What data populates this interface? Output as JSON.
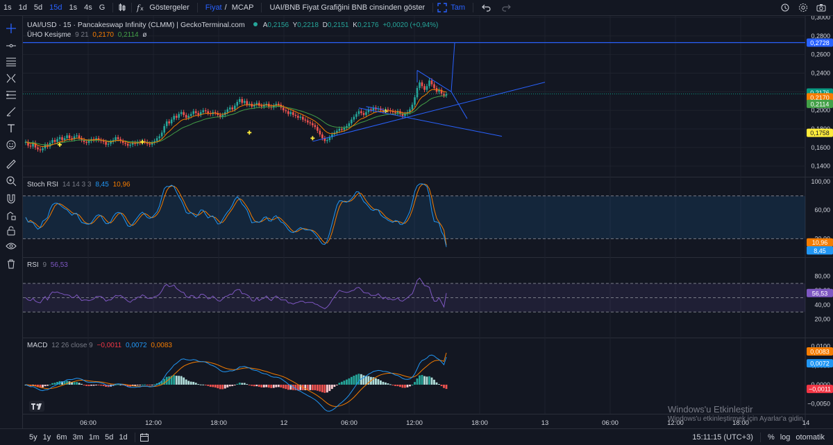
{
  "toolbar": {
    "intervals": [
      "1s",
      "1d",
      "5d",
      "15d",
      "1s",
      "4s",
      "G"
    ],
    "active_interval_index": 3,
    "indicators_label": "Göstergeler",
    "price_label": "Fiyat",
    "mcap_label": "MCAP",
    "pair_toggle_label": "UAI/BNB Fiyat Grafiğini BNB cinsinden göster",
    "fullscreen_label": "Tam"
  },
  "legend": {
    "symbol": "UAI/USD · 15 · Pancakeswap Infinity (CLMM) | GeckoTerminal.com",
    "open_label": "A",
    "open": "0,2156",
    "high_label": "Y",
    "high": "0,2218",
    "low_label": "D",
    "low": "0,2151",
    "close_label": "K",
    "close": "0,2176",
    "change": "+0,0020 (+0,94%)",
    "ma_name": "ÜHO Kesişme",
    "ma_params": "9 21",
    "ma_fast": "0,2170",
    "ma_slow": "0,2114",
    "ma_extra": "ø"
  },
  "stoch_legend": {
    "name": "Stoch RSI",
    "params": "14 14 3 3",
    "k": "8,45",
    "d": "10,96"
  },
  "rsi_legend": {
    "name": "RSI",
    "params": "9",
    "value": "56,53"
  },
  "macd_legend": {
    "name": "MACD",
    "params": "12 26 close 9",
    "hist": "−0,0011",
    "macd": "0,0072",
    "signal": "0,0083"
  },
  "price_axis": {
    "ticks": [
      "0,3000",
      "0,2800",
      "0,2600",
      "0,2400",
      "0,2200",
      "0,2000",
      "0,1800",
      "0,1600",
      "0,1400"
    ],
    "badges": [
      {
        "label": "0,2728",
        "value": 0.2728,
        "color": "#2962ff",
        "text_color": "#ffffff"
      },
      {
        "label": "0,2176",
        "value": 0.2176,
        "color": "#089981",
        "text_color": "#ffffff"
      },
      {
        "label": "0,2170",
        "value": 0.217,
        "color": "#f57c00",
        "text_color": "#ffffff"
      },
      {
        "label": "0,2114",
        "value": 0.2114,
        "color": "#43a047",
        "text_color": "#ffffff"
      },
      {
        "label": "0,1758",
        "value": 0.1758,
        "color": "#ffeb3b",
        "text_color": "#131722"
      }
    ]
  },
  "stoch_axis": {
    "ticks": [
      "100,00",
      "60,00",
      "20,00"
    ],
    "badges": [
      {
        "label": "10,96",
        "value": 10.96,
        "color": "#f57c00"
      },
      {
        "label": "8,45",
        "value": 8.45,
        "color": "#2196f3"
      }
    ]
  },
  "rsi_axis": {
    "ticks": [
      "80,00",
      "60,00",
      "40,00",
      "20,00"
    ],
    "badges": [
      {
        "label": "56,53",
        "value": 56.53,
        "color": "#7e57c2"
      }
    ]
  },
  "macd_axis": {
    "ticks": [
      "0,0100",
      "0,0050",
      "0,0000",
      "−0,0050"
    ],
    "badges": [
      {
        "label": "0,0083",
        "value": 0.0083,
        "color": "#f57c00"
      },
      {
        "label": "0,0072",
        "value": 0.0072,
        "color": "#2196f3"
      },
      {
        "label": "−0,0011",
        "value": -0.0011,
        "color": "#f23645"
      }
    ]
  },
  "time_axis": [
    "06:00",
    "12:00",
    "18:00",
    "12",
    "06:00",
    "12:00",
    "18:00",
    "13",
    "06:00",
    "12:00",
    "18:00",
    "14"
  ],
  "bottom": {
    "ranges": [
      "5y",
      "1y",
      "6m",
      "3m",
      "1m",
      "5d",
      "1d"
    ],
    "clock": "15:11:15 (UTC+3)",
    "percent_label": "%",
    "log_label": "log",
    "auto_label": "otomatik"
  },
  "watermark": {
    "title": "Windows'u Etkinleştir",
    "subtitle": "Windows'u etkinleştirmek için Ayarlar'a gidin."
  },
  "colors": {
    "up": "#26a69a",
    "down": "#ef5350",
    "ma_fast": "#f57c00",
    "ma_slow": "#43a047",
    "stoch_k": "#2196f3",
    "stoch_d": "#f57c00",
    "rsi": "#7e57c2",
    "trendline": "#2962ff"
  },
  "chart_data": {
    "type": "candlestick",
    "interval": "15",
    "close_series": [
      0.166,
      0.162,
      0.161,
      0.165,
      0.16,
      0.158,
      0.157,
      0.159,
      0.163,
      0.161,
      0.165,
      0.168,
      0.166,
      0.169,
      0.171,
      0.168,
      0.17,
      0.173,
      0.17,
      0.169,
      0.172,
      0.173,
      0.17,
      0.168,
      0.166,
      0.165,
      0.167,
      0.169,
      0.168,
      0.17,
      0.168,
      0.167,
      0.166,
      0.163,
      0.164,
      0.166,
      0.168,
      0.171,
      0.169,
      0.167,
      0.165,
      0.164,
      0.162,
      0.163,
      0.165,
      0.164,
      0.166,
      0.165,
      0.167,
      0.166,
      0.164,
      0.163,
      0.165,
      0.167,
      0.17,
      0.172,
      0.176,
      0.183,
      0.188,
      0.186,
      0.19,
      0.194,
      0.192,
      0.196,
      0.198,
      0.195,
      0.192,
      0.194,
      0.196,
      0.199,
      0.197,
      0.195,
      0.198,
      0.2,
      0.199,
      0.197,
      0.196,
      0.198,
      0.197,
      0.195,
      0.193,
      0.195,
      0.198,
      0.201,
      0.203,
      0.201,
      0.205,
      0.209,
      0.212,
      0.208,
      0.21,
      0.206,
      0.207,
      0.204,
      0.206,
      0.208,
      0.205,
      0.204,
      0.206,
      0.207,
      0.204,
      0.203,
      0.205,
      0.207,
      0.206,
      0.203,
      0.2,
      0.199,
      0.196,
      0.198,
      0.195,
      0.194,
      0.192,
      0.193,
      0.19,
      0.189,
      0.187,
      0.186,
      0.184,
      0.182,
      0.178,
      0.174,
      0.17,
      0.167,
      0.168,
      0.171,
      0.174,
      0.176,
      0.178,
      0.18,
      0.179,
      0.181,
      0.183,
      0.186,
      0.19,
      0.193,
      0.196,
      0.199,
      0.197,
      0.195,
      0.198,
      0.201,
      0.2,
      0.203,
      0.201,
      0.202,
      0.2,
      0.199,
      0.201,
      0.2,
      0.199,
      0.198,
      0.197,
      0.199,
      0.196,
      0.194,
      0.196,
      0.198,
      0.201,
      0.206,
      0.214,
      0.224,
      0.23,
      0.226,
      0.222,
      0.226,
      0.232,
      0.228,
      0.224,
      0.22,
      0.222,
      0.218,
      0.216,
      0.2176
    ],
    "ma_fast_last": 0.217,
    "ma_slow_last": 0.2114,
    "ylim": [
      0.13,
      0.3
    ],
    "stoch_rsi": {
      "k_last": 8.45,
      "d_last": 10.96,
      "ylim": [
        0,
        100
      ],
      "bands": [
        20,
        80
      ]
    },
    "rsi": {
      "last": 56.53,
      "ylim": [
        0,
        100
      ],
      "bands": [
        30,
        70
      ]
    },
    "macd": {
      "macd_last": 0.0072,
      "signal_last": 0.0083,
      "hist_last": -0.0011,
      "ylim": [
        -0.0065,
        0.011
      ]
    },
    "horizontal_line": 0.2728
  }
}
